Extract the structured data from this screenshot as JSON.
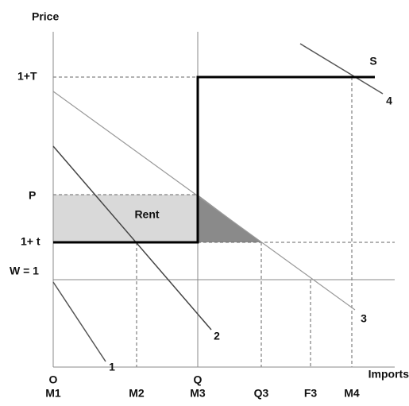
{
  "axis": {
    "y_label": "Price",
    "x_label": "Imports",
    "origin": "O",
    "q_label": "Q"
  },
  "price_levels": [
    "1+T",
    "P",
    "1+ t",
    "W = 1"
  ],
  "quantity_labels": [
    "M1",
    "M2",
    "M3",
    "Q3",
    "F3",
    "M4"
  ],
  "curve_labels": [
    "1",
    "2",
    "3",
    "4"
  ],
  "supply_label": "S",
  "region_label": "Rent"
}
